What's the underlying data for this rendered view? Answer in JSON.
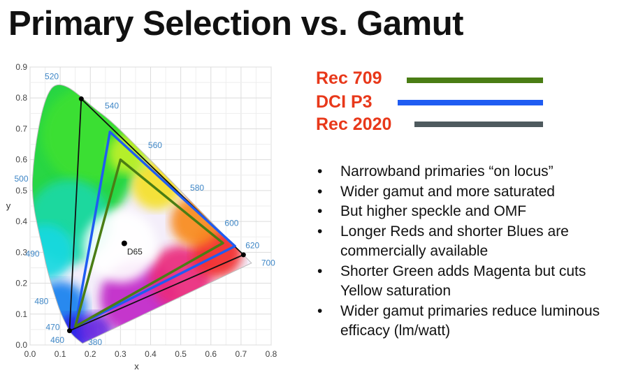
{
  "title": "Primary Selection vs. Gamut",
  "legend": [
    {
      "label": "Rec 709",
      "color": "#4a7d14"
    },
    {
      "label": "DCI P3",
      "color": "#1f5cf2"
    },
    {
      "label": "Rec 2020",
      "color": "#4e5a5e"
    }
  ],
  "bullets": [
    "Narrowband primaries “on locus”",
    "Wider gamut and more saturated",
    "But higher speckle and OMF",
    "Longer Reds and shorter Blues are commercially available",
    "Shorter Green adds Magenta but cuts Yellow saturation",
    "Wider gamut primaries reduce luminous efficacy (lm/watt)"
  ],
  "chart_data": {
    "type": "scatter",
    "title": "",
    "xlabel": "x",
    "ylabel": "y",
    "xlim": [
      0.0,
      0.8
    ],
    "ylim": [
      0.0,
      0.9
    ],
    "grid": true,
    "x_ticks": [
      "0.0",
      "0.1",
      "0.2",
      "0.3",
      "0.4",
      "0.5",
      "0.6",
      "0.7",
      "0.8"
    ],
    "y_ticks": [
      "0.0",
      "0.1",
      "0.2",
      "0.3",
      "0.4",
      "0.5",
      "0.6",
      "0.7",
      "0.8",
      "0.9"
    ],
    "spectral_locus": [
      {
        "nm": "380",
        "x": 0.1741,
        "y": 0.005
      },
      {
        "nm": "460",
        "x": 0.144,
        "y": 0.0297
      },
      {
        "nm": "470",
        "x": 0.1241,
        "y": 0.0578
      },
      {
        "nm": "480",
        "x": 0.0913,
        "y": 0.1327
      },
      {
        "nm": "490",
        "x": 0.0454,
        "y": 0.295
      },
      {
        "nm": "500",
        "x": 0.0082,
        "y": 0.5384
      },
      {
        "nm": "520",
        "x": 0.0743,
        "y": 0.8338
      },
      {
        "nm": "540",
        "x": 0.2296,
        "y": 0.7543
      },
      {
        "nm": "560",
        "x": 0.3731,
        "y": 0.6245
      },
      {
        "nm": "580",
        "x": 0.5125,
        "y": 0.4866
      },
      {
        "nm": "600",
        "x": 0.627,
        "y": 0.3725
      },
      {
        "nm": "620",
        "x": 0.6915,
        "y": 0.3083
      },
      {
        "nm": "700",
        "x": 0.7347,
        "y": 0.2653
      }
    ],
    "series": [
      {
        "name": "Rec 709",
        "points": [
          [
            0.64,
            0.33
          ],
          [
            0.3,
            0.6
          ],
          [
            0.15,
            0.06
          ]
        ]
      },
      {
        "name": "DCI P3",
        "points": [
          [
            0.68,
            0.32
          ],
          [
            0.265,
            0.69
          ],
          [
            0.15,
            0.06
          ]
        ]
      },
      {
        "name": "Rec 2020",
        "points": [
          [
            0.708,
            0.292
          ],
          [
            0.17,
            0.797
          ],
          [
            0.131,
            0.046
          ]
        ]
      }
    ],
    "annotations": [
      {
        "text": "D65",
        "x": 0.3127,
        "y": 0.329
      }
    ]
  }
}
